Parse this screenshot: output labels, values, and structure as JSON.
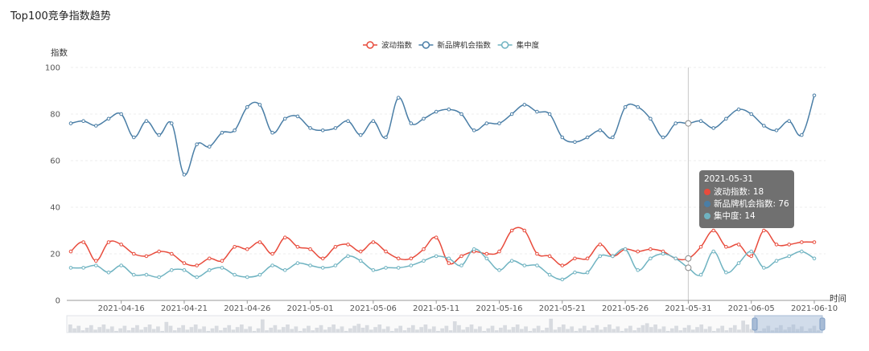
{
  "page": {
    "title": "Top100竞争指数趋势"
  },
  "colors": {
    "volatility": "#e84b3c",
    "opportunity": "#4a7ea6",
    "concentration": "#6fb3c1",
    "crosshair": "#c8c8c8"
  },
  "chart_data": {
    "type": "line",
    "ylabel": "指数",
    "xlabel": "时间",
    "ylim": [
      0,
      100
    ],
    "yticks": [
      0,
      20,
      40,
      60,
      80,
      100
    ],
    "x": [
      "2021-04-12",
      "2021-04-13",
      "2021-04-14",
      "2021-04-15",
      "2021-04-16",
      "2021-04-17",
      "2021-04-18",
      "2021-04-19",
      "2021-04-20",
      "2021-04-21",
      "2021-04-22",
      "2021-04-23",
      "2021-04-24",
      "2021-04-25",
      "2021-04-26",
      "2021-04-27",
      "2021-04-28",
      "2021-04-29",
      "2021-04-30",
      "2021-05-01",
      "2021-05-02",
      "2021-05-03",
      "2021-05-04",
      "2021-05-05",
      "2021-05-06",
      "2021-05-07",
      "2021-05-08",
      "2021-05-09",
      "2021-05-10",
      "2021-05-11",
      "2021-05-12",
      "2021-05-13",
      "2021-05-14",
      "2021-05-15",
      "2021-05-16",
      "2021-05-17",
      "2021-05-18",
      "2021-05-19",
      "2021-05-20",
      "2021-05-21",
      "2021-05-22",
      "2021-05-23",
      "2021-05-24",
      "2021-05-25",
      "2021-05-26",
      "2021-05-27",
      "2021-05-28",
      "2021-05-29",
      "2021-05-30",
      "2021-05-31",
      "2021-06-01",
      "2021-06-02",
      "2021-06-03",
      "2021-06-04",
      "2021-06-05",
      "2021-06-06",
      "2021-06-07",
      "2021-06-08",
      "2021-06-09",
      "2021-06-10"
    ],
    "xtick_labels": [
      "2021-04-16",
      "2021-04-21",
      "2021-04-26",
      "2021-05-01",
      "2021-05-06",
      "2021-05-11",
      "2021-05-16",
      "2021-05-21",
      "2021-05-26",
      "2021-05-31",
      "2021-06-05",
      "2021-06-10"
    ],
    "series": [
      {
        "name": "波动指数",
        "key": "volatility",
        "values": [
          21,
          25,
          17,
          25,
          24,
          20,
          19,
          21,
          20,
          16,
          15,
          18,
          17,
          23,
          22,
          25,
          20,
          27,
          23,
          22,
          18,
          23,
          24,
          21,
          25,
          21,
          18,
          18,
          22,
          27,
          16,
          19,
          21,
          20,
          21,
          30,
          30,
          20,
          19,
          15,
          18,
          18,
          24,
          19,
          22,
          21,
          22,
          21,
          18,
          18,
          23,
          30,
          23,
          24,
          19,
          30,
          24,
          24,
          25,
          25
        ]
      },
      {
        "name": "新品牌机会指数",
        "key": "opportunity",
        "values": [
          76,
          77,
          75,
          78,
          80,
          70,
          77,
          71,
          76,
          54,
          67,
          66,
          72,
          73,
          83,
          84,
          72,
          78,
          79,
          74,
          73,
          74,
          77,
          71,
          77,
          70,
          87,
          76,
          78,
          81,
          82,
          80,
          73,
          76,
          76,
          80,
          84,
          81,
          80,
          70,
          68,
          70,
          73,
          70,
          83,
          83,
          78,
          70,
          76,
          76,
          77,
          74,
          78,
          82,
          80,
          75,
          73,
          77,
          71,
          88
        ]
      },
      {
        "name": "集中度",
        "key": "concentration",
        "values": [
          14,
          14,
          15,
          12,
          15,
          11,
          11,
          10,
          13,
          13,
          10,
          13,
          14,
          11,
          10,
          11,
          15,
          13,
          16,
          15,
          14,
          15,
          19,
          17,
          13,
          14,
          14,
          15,
          17,
          19,
          18,
          15,
          22,
          18,
          13,
          17,
          15,
          15,
          11,
          9,
          12,
          12,
          19,
          19,
          22,
          13,
          18,
          20,
          18,
          14,
          11,
          21,
          12,
          16,
          21,
          14,
          17,
          19,
          21,
          18
        ]
      }
    ],
    "highlight_index": 49,
    "tooltip": {
      "date": "2021-05-31",
      "rows": [
        {
          "key": "volatility",
          "text": "波动指数: 18"
        },
        {
          "key": "opportunity",
          "text": "新品牌机会指数: 76"
        },
        {
          "key": "concentration",
          "text": "集中度: 14"
        }
      ]
    },
    "legend_position": "top-center",
    "grid": true
  }
}
